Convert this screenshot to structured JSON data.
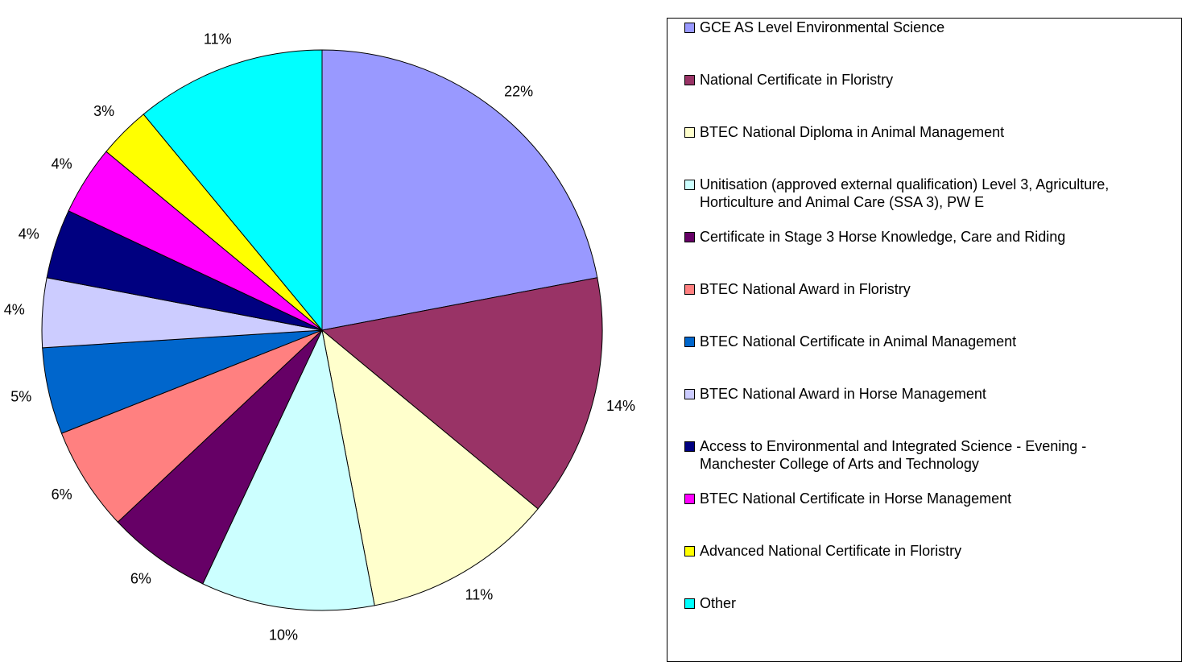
{
  "chart_data": {
    "type": "pie",
    "categories": [
      "GCE AS Level Environmental Science",
      "National Certificate in Floristry",
      "BTEC National Diploma in Animal Management",
      "Unitisation (approved external qualification) Level 3, Agriculture, Horticulture and Animal Care (SSA 3), PW E",
      "Certificate in Stage 3 Horse Knowledge, Care and Riding",
      "BTEC National Award in Floristry",
      "BTEC National Certificate in Animal Management",
      "BTEC National Award in Horse Management",
      "Access to Environmental and Integrated Science - Evening - Manchester College of Arts and Technology",
      "BTEC National Certificate in Horse Management",
      "Advanced National Certificate in Floristry",
      "Other"
    ],
    "values": [
      22,
      14,
      11,
      10,
      6,
      6,
      5,
      4,
      4,
      4,
      3,
      11
    ],
    "value_labels": [
      "22%",
      "14%",
      "11%",
      "10%",
      "6%",
      "6%",
      "5%",
      "4%",
      "4%",
      "4%",
      "3%",
      "11%"
    ],
    "colors": [
      "#9999ff",
      "#993366",
      "#ffffcc",
      "#ccffff",
      "#660066",
      "#ff8080",
      "#0066cc",
      "#ccccff",
      "#000080",
      "#ff00ff",
      "#ffff00",
      "#00ffff"
    ],
    "legend": "right"
  }
}
